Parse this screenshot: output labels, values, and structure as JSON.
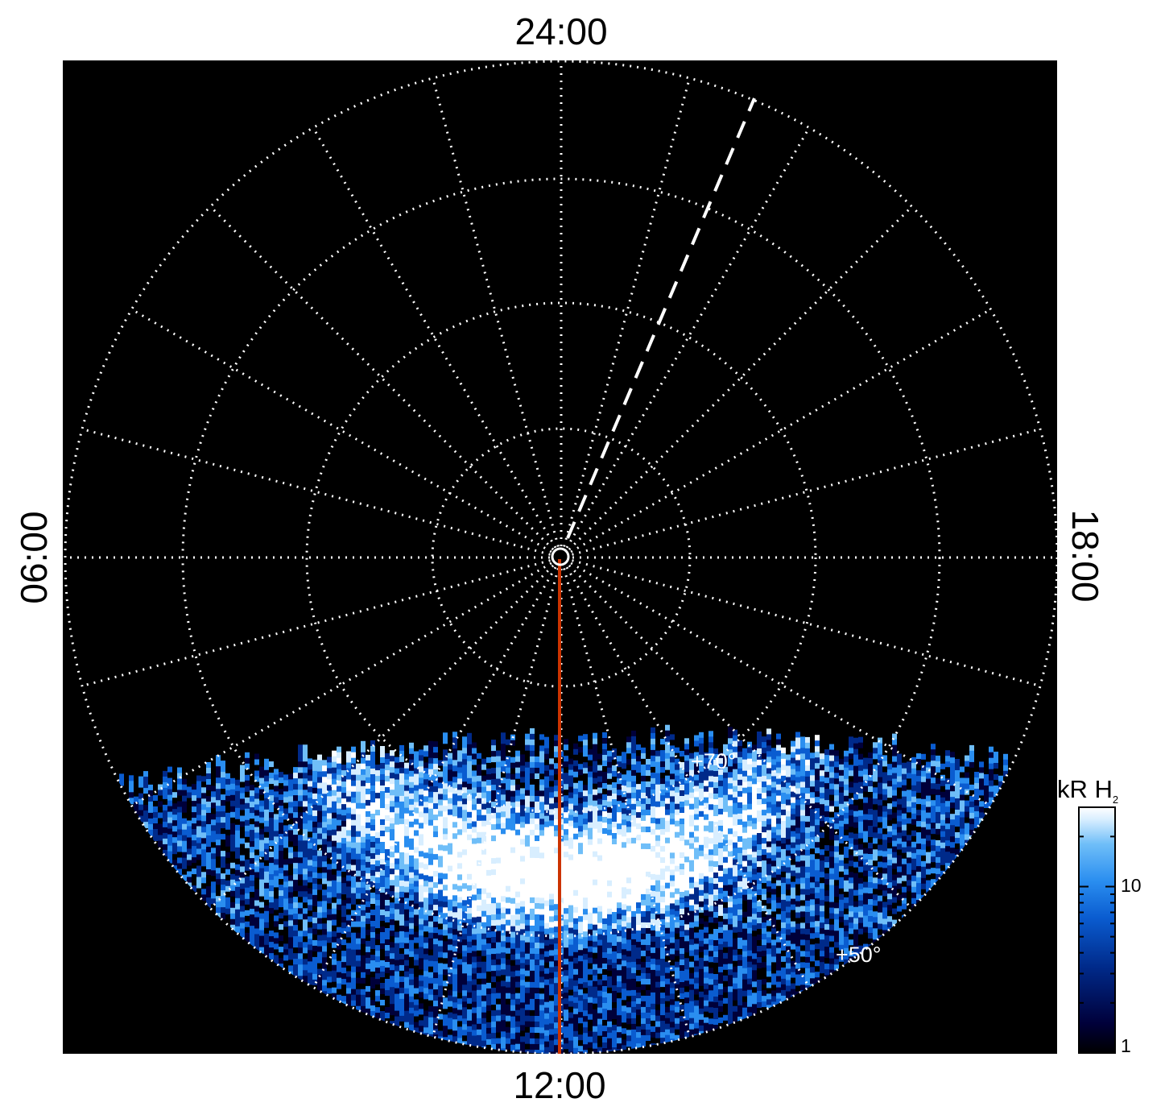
{
  "chart_data": {
    "type": "heatmap",
    "title": "",
    "projection": "polar",
    "local_time_labels": {
      "top": "24:00",
      "bottom": "12:00",
      "left": "06:00",
      "right": "18:00"
    },
    "latitude_labels": [
      "+70°",
      "+50°"
    ],
    "colorbar": {
      "title": "kR H",
      "title_subscript": "2",
      "scale": "log",
      "range": [
        1,
        30
      ],
      "ticks": [
        {
          "value": 10,
          "label": "10"
        },
        {
          "value": 1,
          "label": "1"
        }
      ],
      "colormap": [
        "#000000",
        "#00003a",
        "#002a8a",
        "#0a5cd0",
        "#2a8ef0",
        "#6fbef8",
        "#d8eeff",
        "#ffffff"
      ]
    },
    "grid": true,
    "markers": [
      "dashed line toward ~22:30 LT",
      "red line toward 12:00 LT"
    ],
    "colors": {
      "background": "#000000",
      "grid": "#ffffff",
      "marker": "#cc3300"
    }
  }
}
